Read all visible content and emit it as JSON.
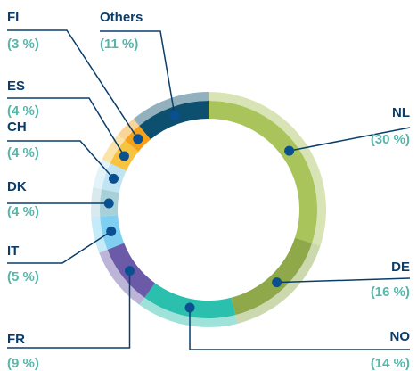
{
  "chart_data": {
    "type": "donut",
    "categories": [
      "NL",
      "DE",
      "NO",
      "FR",
      "IT",
      "DK",
      "CH",
      "ES",
      "FI",
      "Others"
    ],
    "values": [
      30,
      16,
      14,
      9,
      5,
      4,
      4,
      4,
      3,
      11
    ],
    "value_labels": [
      "(30 %)",
      "(16 %)",
      "(14 %)",
      "(9 %)",
      "(5 %)",
      "(4 %)",
      "(4 %)",
      "(4 %)",
      "(3 %)",
      "(11 %)"
    ],
    "colors": [
      "#a9c45a",
      "#8ea84a",
      "#2bbfae",
      "#6a5aa8",
      "#7fd0f0",
      "#a8d0d8",
      "#c0e4f4",
      "#f7c340",
      "#f5a21a",
      "#0d4f6e"
    ]
  }
}
